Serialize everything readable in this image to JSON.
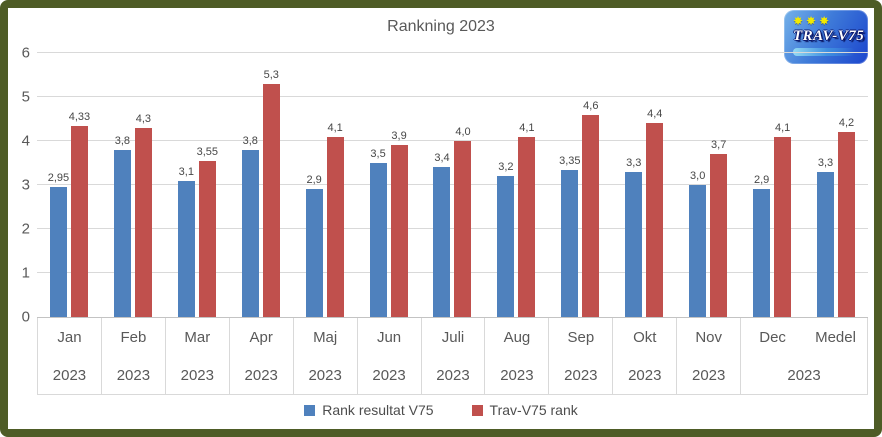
{
  "title": "Rankning 2023",
  "logo": {
    "name": "TRAV-V75",
    "stars": "✸✸✸",
    "bg_from": "#74b1e9",
    "bg_to": "#1b45cd",
    "star_color": "#f2ea00"
  },
  "chart_data": {
    "type": "bar",
    "title": "Rankning 2023",
    "categories": [
      "Jan",
      "Feb",
      "Mar",
      "Apr",
      "Maj",
      "Jun",
      "Juli",
      "Aug",
      "Sep",
      "Okt",
      "Nov",
      "Dec",
      "Medel"
    ],
    "year_groups": [
      {
        "label": "2023",
        "span": 1
      },
      {
        "label": "2023",
        "span": 1
      },
      {
        "label": "2023",
        "span": 1
      },
      {
        "label": "2023",
        "span": 1
      },
      {
        "label": "2023",
        "span": 1
      },
      {
        "label": "2023",
        "span": 1
      },
      {
        "label": "2023",
        "span": 1
      },
      {
        "label": "2023",
        "span": 1
      },
      {
        "label": "2023",
        "span": 1
      },
      {
        "label": "2023",
        "span": 1
      },
      {
        "label": "2023",
        "span": 1
      },
      {
        "label": "2023",
        "span": 2
      }
    ],
    "series": [
      {
        "name": "Rank resultat V75",
        "color": "#4f81bd",
        "values": [
          2.95,
          3.8,
          3.1,
          3.8,
          2.9,
          3.5,
          3.4,
          3.2,
          3.35,
          3.3,
          3.0,
          2.9,
          3.3
        ],
        "labels": [
          "2,95",
          "3,8",
          "3,1",
          "3,8",
          "2,9",
          "3,5",
          "3,4",
          "3,2",
          "3,35",
          "3,3",
          "3,0",
          "2,9",
          "3,3"
        ]
      },
      {
        "name": "Trav-V75 rank",
        "color": "#c0504d",
        "values": [
          4.33,
          4.3,
          3.55,
          5.3,
          4.1,
          3.9,
          4.0,
          4.1,
          4.6,
          4.4,
          3.7,
          4.1,
          4.2
        ],
        "labels": [
          "4,33",
          "4,3",
          "3,55",
          "5,3",
          "4,1",
          "3,9",
          "4,0",
          "4,1",
          "4,6",
          "4,4",
          "3,7",
          "4,1",
          "4,2"
        ]
      }
    ],
    "ylim": [
      0,
      6
    ],
    "yticks": [
      "0",
      "1",
      "2",
      "3",
      "4",
      "5",
      "6"
    ],
    "grid": true,
    "legend_position": "bottom",
    "gridline_color": "#d9d9d9",
    "axis_text_color": "#595959"
  }
}
